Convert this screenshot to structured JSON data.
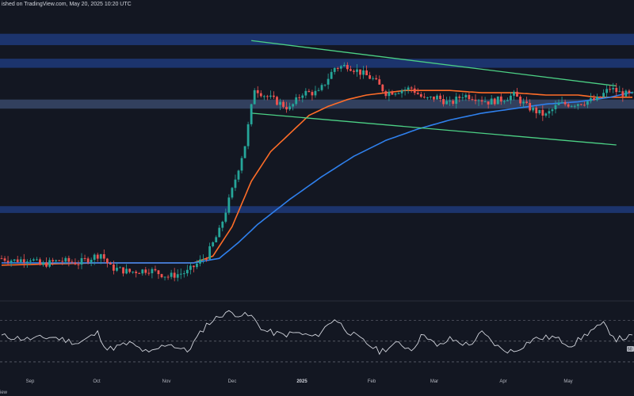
{
  "header": {
    "text": "ished on TradingView.com, May 20, 2025 10:20 UTC"
  },
  "footer": {
    "text": "iew"
  },
  "rsi_badge": "50",
  "colors": {
    "background": "#131722",
    "up_candle": "#26a69a",
    "down_candle": "#ef5350",
    "ma_orange": "#ff6d28",
    "ma_blue": "#2f80ed",
    "trendline": "#4cd185",
    "zone_dark": "#1f3a7a",
    "zone_light": "#3d4f73",
    "rsi_line": "#d1d4dc"
  },
  "chart_data": [
    {
      "type": "candlestick",
      "title": "",
      "xlabel": "",
      "ylabel": "",
      "x_ticks": [
        "Sep",
        "Oct",
        "Nov",
        "Dec",
        "2025",
        "Feb",
        "Mar",
        "Apr",
        "May"
      ],
      "x_tick_bold": [
        "2025"
      ],
      "price_anchors": [
        {
          "t": 0,
          "p": 46
        },
        {
          "t": 4,
          "p": 45
        },
        {
          "t": 9,
          "p": 46
        },
        {
          "t": 12,
          "p": 43
        },
        {
          "t": 18,
          "p": 45
        },
        {
          "t": 24,
          "p": 44
        },
        {
          "t": 31,
          "p": 48
        },
        {
          "t": 34,
          "p": 42
        },
        {
          "t": 40,
          "p": 40
        },
        {
          "t": 46,
          "p": 41
        },
        {
          "t": 52,
          "p": 38
        },
        {
          "t": 58,
          "p": 40
        },
        {
          "t": 64,
          "p": 47
        },
        {
          "t": 68,
          "p": 58
        },
        {
          "t": 72,
          "p": 76
        },
        {
          "t": 76,
          "p": 96
        },
        {
          "t": 79,
          "p": 121
        },
        {
          "t": 82,
          "p": 118
        },
        {
          "t": 86,
          "p": 115
        },
        {
          "t": 90,
          "p": 112
        },
        {
          "t": 94,
          "p": 119
        },
        {
          "t": 99,
          "p": 119
        },
        {
          "t": 104,
          "p": 130
        },
        {
          "t": 108,
          "p": 131
        },
        {
          "t": 112,
          "p": 128
        },
        {
          "t": 116,
          "p": 125
        },
        {
          "t": 120,
          "p": 119
        },
        {
          "t": 124,
          "p": 120
        },
        {
          "t": 128,
          "p": 121
        },
        {
          "t": 132,
          "p": 116
        },
        {
          "t": 136,
          "p": 117
        },
        {
          "t": 140,
          "p": 114
        },
        {
          "t": 144,
          "p": 118
        },
        {
          "t": 148,
          "p": 117
        },
        {
          "t": 152,
          "p": 115
        },
        {
          "t": 156,
          "p": 116
        },
        {
          "t": 160,
          "p": 118
        },
        {
          "t": 164,
          "p": 113
        },
        {
          "t": 168,
          "p": 110
        },
        {
          "t": 170,
          "p": 109
        },
        {
          "t": 174,
          "p": 114
        },
        {
          "t": 178,
          "p": 114
        },
        {
          "t": 182,
          "p": 115
        },
        {
          "t": 186,
          "p": 116
        },
        {
          "t": 190,
          "p": 121
        },
        {
          "t": 193,
          "p": 119
        },
        {
          "t": 196,
          "p": 118
        }
      ],
      "moving_averages": [
        {
          "name": "",
          "color": "#ff6d28",
          "points": [
            {
              "t": 0,
              "p": 43
            },
            {
              "t": 30,
              "p": 44
            },
            {
              "t": 60,
              "p": 44
            },
            {
              "t": 66,
              "p": 47
            },
            {
              "t": 72,
              "p": 60
            },
            {
              "t": 78,
              "p": 80
            },
            {
              "t": 84,
              "p": 93
            },
            {
              "t": 90,
              "p": 101
            },
            {
              "t": 96,
              "p": 109
            },
            {
              "t": 102,
              "p": 113
            },
            {
              "t": 108,
              "p": 116
            },
            {
              "t": 114,
              "p": 118
            },
            {
              "t": 120,
              "p": 119
            },
            {
              "t": 126,
              "p": 120
            },
            {
              "t": 132,
              "p": 120
            },
            {
              "t": 140,
              "p": 120
            },
            {
              "t": 150,
              "p": 119
            },
            {
              "t": 160,
              "p": 119
            },
            {
              "t": 170,
              "p": 118
            },
            {
              "t": 180,
              "p": 118
            },
            {
              "t": 186,
              "p": 117
            },
            {
              "t": 192,
              "p": 117
            },
            {
              "t": 196,
              "p": 117
            }
          ]
        },
        {
          "name": "",
          "color": "#2f80ed",
          "points": [
            {
              "t": 0,
              "p": 44
            },
            {
              "t": 30,
              "p": 44
            },
            {
              "t": 60,
              "p": 44
            },
            {
              "t": 68,
              "p": 46
            },
            {
              "t": 74,
              "p": 53
            },
            {
              "t": 80,
              "p": 61
            },
            {
              "t": 90,
              "p": 72
            },
            {
              "t": 100,
              "p": 82
            },
            {
              "t": 110,
              "p": 91
            },
            {
              "t": 120,
              "p": 98
            },
            {
              "t": 130,
              "p": 103
            },
            {
              "t": 140,
              "p": 107
            },
            {
              "t": 150,
              "p": 110
            },
            {
              "t": 160,
              "p": 112
            },
            {
              "t": 170,
              "p": 114
            },
            {
              "t": 180,
              "p": 115
            },
            {
              "t": 190,
              "p": 117
            },
            {
              "t": 196,
              "p": 119
            }
          ]
        }
      ],
      "trendlines": [
        {
          "t1": 78,
          "p1": 142,
          "t2": 192,
          "p2": 122
        },
        {
          "t1": 78,
          "p1": 110,
          "t2": 192,
          "p2": 96
        }
      ],
      "zones": [
        {
          "from": 140,
          "to": 145,
          "style": "dark"
        },
        {
          "from": 130,
          "to": 134,
          "style": "dark"
        },
        {
          "from": 112,
          "to": 116,
          "style": "light"
        },
        {
          "from": 66,
          "to": 69,
          "style": "dark"
        }
      ],
      "ylim": [
        30,
        155
      ],
      "xlim": [
        0,
        197
      ]
    },
    {
      "type": "line",
      "title": "",
      "series": [
        {
          "values_anchors": [
            {
              "t": 0,
              "r": 55
            },
            {
              "t": 8,
              "r": 52
            },
            {
              "t": 16,
              "r": 54
            },
            {
              "t": 24,
              "r": 48
            },
            {
              "t": 30,
              "r": 58
            },
            {
              "t": 33,
              "r": 42
            },
            {
              "t": 40,
              "r": 48
            },
            {
              "t": 46,
              "r": 38
            },
            {
              "t": 52,
              "r": 48
            },
            {
              "t": 58,
              "r": 40
            },
            {
              "t": 64,
              "r": 66
            },
            {
              "t": 70,
              "r": 78
            },
            {
              "t": 74,
              "r": 76
            },
            {
              "t": 78,
              "r": 74
            },
            {
              "t": 82,
              "r": 60
            },
            {
              "t": 88,
              "r": 56
            },
            {
              "t": 92,
              "r": 58
            },
            {
              "t": 98,
              "r": 54
            },
            {
              "t": 104,
              "r": 72
            },
            {
              "t": 108,
              "r": 60
            },
            {
              "t": 112,
              "r": 52
            },
            {
              "t": 118,
              "r": 40
            },
            {
              "t": 124,
              "r": 48
            },
            {
              "t": 128,
              "r": 42
            },
            {
              "t": 132,
              "r": 58
            },
            {
              "t": 136,
              "r": 44
            },
            {
              "t": 140,
              "r": 52
            },
            {
              "t": 146,
              "r": 46
            },
            {
              "t": 150,
              "r": 58
            },
            {
              "t": 156,
              "r": 42
            },
            {
              "t": 160,
              "r": 40
            },
            {
              "t": 166,
              "r": 52
            },
            {
              "t": 172,
              "r": 54
            },
            {
              "t": 178,
              "r": 46
            },
            {
              "t": 184,
              "r": 60
            },
            {
              "t": 188,
              "r": 66
            },
            {
              "t": 192,
              "r": 52
            },
            {
              "t": 196,
              "r": 54
            }
          ]
        }
      ],
      "reference_lines": [
        70,
        50,
        30
      ],
      "ylim": [
        20,
        85
      ]
    }
  ]
}
